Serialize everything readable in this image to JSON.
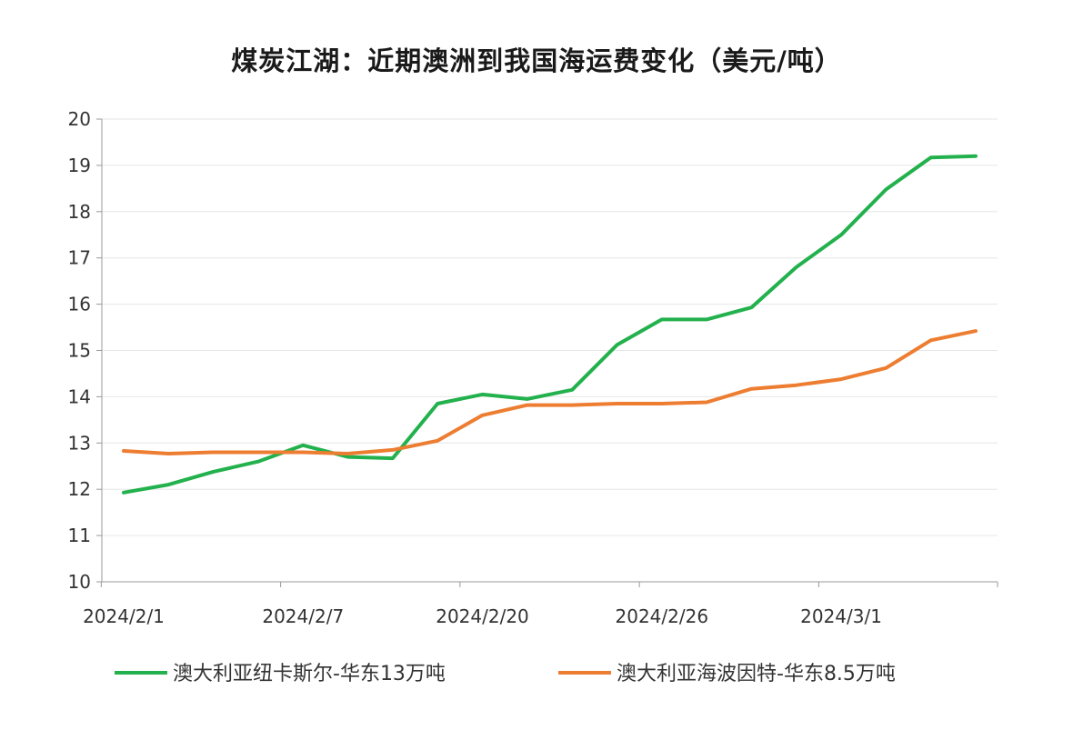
{
  "chart_data": {
    "type": "line",
    "title": "煤炭江湖：近期澳洲到我国海运费变化（美元/吨）",
    "xlabel": "",
    "ylabel": "",
    "ylim": [
      10,
      20
    ],
    "yticks": [
      "10",
      "11",
      "12",
      "13",
      "14",
      "15",
      "16",
      "17",
      "18",
      "19",
      "20"
    ],
    "x_tick_labels": [
      "2024/2/1",
      "2024/2/7",
      "2024/2/20",
      "2024/2/26",
      "2024/3/1"
    ],
    "x_tick_label_indices": [
      0,
      4,
      8,
      12,
      16
    ],
    "point_count": 20,
    "grid": true,
    "legend_position": "bottom",
    "series": [
      {
        "name": "澳大利亚纽卡斯尔-华东13万吨",
        "color": "#22b14c",
        "values": [
          11.93,
          12.1,
          12.38,
          12.6,
          12.95,
          12.7,
          12.67,
          13.85,
          14.05,
          13.95,
          14.15,
          15.12,
          15.67,
          15.67,
          15.93,
          16.8,
          17.5,
          18.48,
          19.17,
          19.2
        ]
      },
      {
        "name": "澳大利亚海波因特-华东8.5万吨",
        "color": "#ed7d31",
        "values": [
          12.83,
          12.77,
          12.8,
          12.8,
          12.8,
          12.77,
          12.85,
          13.05,
          13.6,
          13.82,
          13.82,
          13.85,
          13.85,
          13.88,
          14.17,
          14.25,
          14.38,
          14.62,
          15.22,
          15.42
        ]
      }
    ]
  }
}
